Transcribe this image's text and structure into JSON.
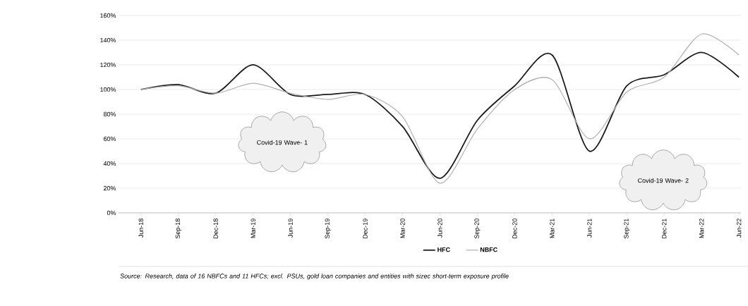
{
  "chart_data": {
    "type": "line",
    "categories": [
      "Jun-18",
      "Sep-18",
      "Dec-18",
      "Mar-19",
      "Jun-19",
      "Sep-19",
      "Dec-19",
      "Mar-20",
      "Jun-20",
      "Sep-20",
      "Dec-20",
      "Mar-21",
      "Jun-21",
      "Sep-21",
      "Dec-21",
      "Mar-22",
      "Jun-22"
    ],
    "series": [
      {
        "name": "HFC",
        "color": "#1a1a1a",
        "values": [
          100,
          104,
          97,
          120,
          96,
          96,
          96,
          70,
          28,
          75,
          103,
          128,
          50,
          103,
          112,
          130,
          110
        ]
      },
      {
        "name": "NBFC",
        "color": "#b0b0b0",
        "values": [
          100,
          103,
          97,
          105,
          97,
          92,
          96,
          78,
          24,
          68,
          100,
          108,
          60,
          98,
          110,
          145,
          128
        ]
      }
    ],
    "ylim": [
      0,
      160
    ],
    "yticks": [
      {
        "value": 0,
        "label": "0%"
      },
      {
        "value": 20,
        "label": "20%"
      },
      {
        "value": 40,
        "label": "40%"
      },
      {
        "value": 60,
        "label": "60%"
      },
      {
        "value": 80,
        "label": "80%"
      },
      {
        "value": 100,
        "label": "100%"
      },
      {
        "value": 120,
        "label": "120%"
      },
      {
        "value": 140,
        "label": "140%"
      },
      {
        "value": 160,
        "label": "160%"
      }
    ],
    "grid": "y",
    "legend": "bottom",
    "marker": "none",
    "line_style": "solid",
    "annotations": [
      "Covid-19 Wave- 1",
      "Covid-19 Wave- 2",
      "*Source: Research, data of 16 NBFCs and 11 HFCs; excl. PSUs, gold loan companies and entities with sizec short-term exposure profile*"
    ]
  }
}
